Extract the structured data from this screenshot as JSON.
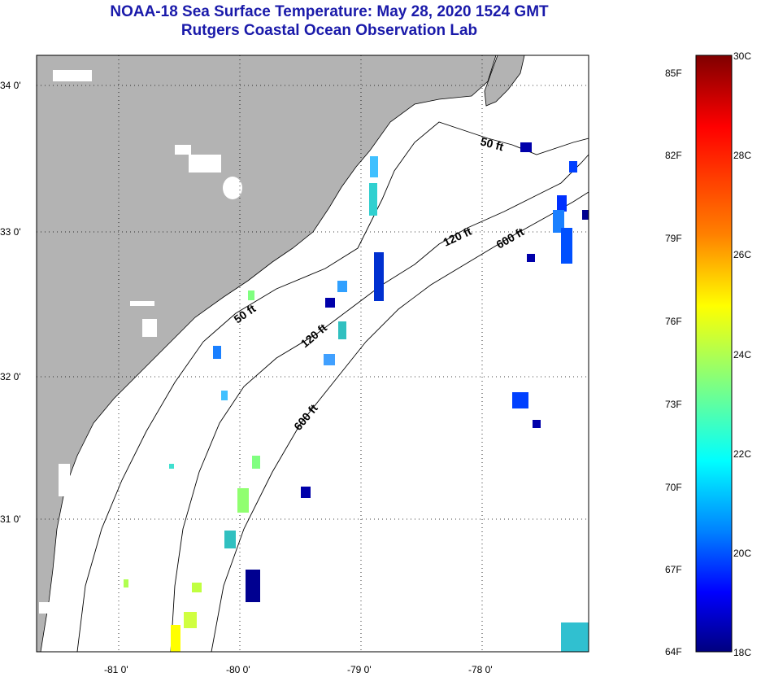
{
  "header": {
    "title": "NOAA-18 Sea Surface Temperature:  May 28, 2020 1524 GMT",
    "subtitle": "Rutgers Coastal Ocean Observation Lab"
  },
  "map": {
    "latitude_labels": [
      "34 0'",
      "33 0'",
      "32 0'",
      "31 0'"
    ],
    "longitude_labels": [
      "-81 0'",
      "-80 0'",
      "-79 0'",
      "-78 0'"
    ],
    "depth_contours": [
      {
        "label": "50 ft"
      },
      {
        "label": "120 ft"
      },
      {
        "label": "600 ft"
      }
    ],
    "land_color": "#b3b3b3",
    "ocean_color": "#ffffff"
  },
  "colorbar": {
    "fahrenheit_labels": [
      "85F",
      "82F",
      "79F",
      "76F",
      "73F",
      "70F",
      "67F",
      "64F"
    ],
    "celsius_labels": [
      "30C",
      "28C",
      "26C",
      "24C",
      "22C",
      "20C",
      "18C"
    ],
    "min_c": 18,
    "max_c": 30,
    "colors": [
      "#7f0000",
      "#ff0000",
      "#ff8000",
      "#ffff00",
      "#80ff80",
      "#00ffff",
      "#0080ff",
      "#0000ff",
      "#00007f"
    ]
  }
}
